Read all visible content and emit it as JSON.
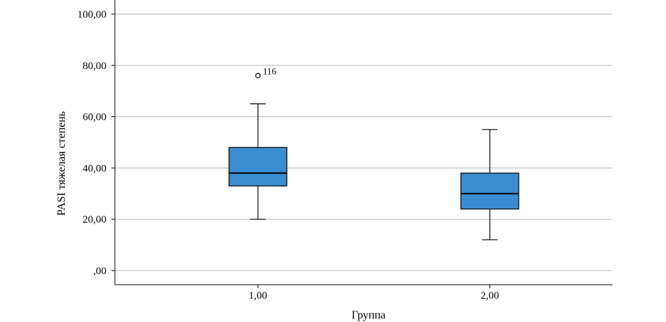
{
  "chart_data": {
    "type": "boxplot",
    "title": "",
    "xlabel": "Группа",
    "ylabel": "PASI тяжелая степень",
    "categories": [
      "1,00",
      "2,00"
    ],
    "ylim": [
      -5,
      105
    ],
    "yticks": [
      0,
      20,
      40,
      60,
      80,
      100
    ],
    "ytick_labels": [
      ",00",
      "20,00",
      "40,00",
      "60,00",
      "80,00",
      "100,00"
    ],
    "grid": true,
    "legend": "none",
    "box_color": "#3A8DD0",
    "boxes": [
      {
        "category": "1,00",
        "whisker_low": 20,
        "q1": 33,
        "median": 38,
        "q3": 48,
        "whisker_high": 65,
        "outliers": [
          {
            "value": 76,
            "label": "116"
          }
        ]
      },
      {
        "category": "2,00",
        "whisker_low": 12,
        "q1": 24,
        "median": 30,
        "q3": 38,
        "whisker_high": 55,
        "outliers": []
      }
    ]
  }
}
